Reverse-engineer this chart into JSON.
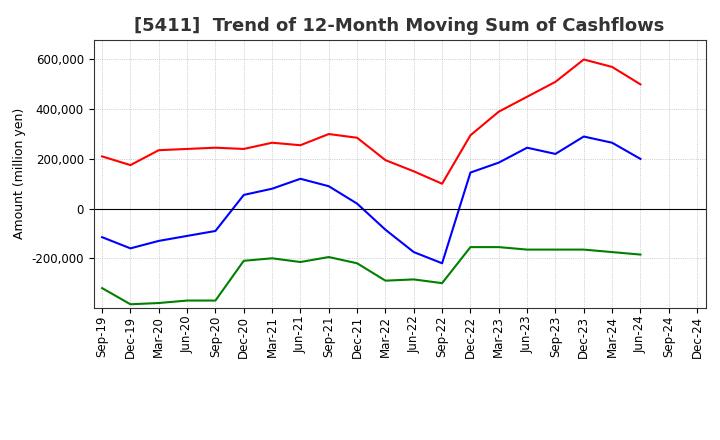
{
  "title": "[5411]  Trend of 12-Month Moving Sum of Cashflows",
  "ylabel": "Amount (million yen)",
  "x_labels": [
    "Sep-19",
    "Dec-19",
    "Mar-20",
    "Jun-20",
    "Sep-20",
    "Dec-20",
    "Mar-21",
    "Jun-21",
    "Sep-21",
    "Dec-21",
    "Mar-22",
    "Jun-22",
    "Sep-22",
    "Dec-22",
    "Mar-23",
    "Jun-23",
    "Sep-23",
    "Dec-23",
    "Mar-24",
    "Jun-24",
    "Sep-24",
    "Dec-24"
  ],
  "operating_cashflow": [
    210000,
    175000,
    235000,
    240000,
    245000,
    240000,
    265000,
    255000,
    300000,
    285000,
    195000,
    150000,
    100000,
    295000,
    390000,
    450000,
    510000,
    600000,
    570000,
    500000,
    null,
    null
  ],
  "investing_cashflow": [
    -320000,
    -385000,
    -380000,
    -370000,
    -370000,
    -210000,
    -200000,
    -215000,
    -195000,
    -220000,
    -290000,
    -285000,
    -300000,
    -155000,
    -155000,
    -165000,
    -165000,
    -165000,
    -175000,
    -185000,
    null,
    null
  ],
  "free_cashflow": [
    -115000,
    -160000,
    -130000,
    -110000,
    -90000,
    55000,
    80000,
    120000,
    90000,
    20000,
    -85000,
    -175000,
    -220000,
    145000,
    185000,
    245000,
    220000,
    290000,
    265000,
    200000,
    null,
    null
  ],
  "operating_color": "#ff0000",
  "investing_color": "#008000",
  "free_color": "#0000ff",
  "ylim": [
    -400000,
    680000
  ],
  "yticks": [
    -200000,
    0,
    200000,
    400000,
    600000
  ],
  "background_color": "#ffffff",
  "grid_color": "#aaaaaa",
  "title_fontsize": 13,
  "label_fontsize": 9,
  "tick_fontsize": 8.5
}
